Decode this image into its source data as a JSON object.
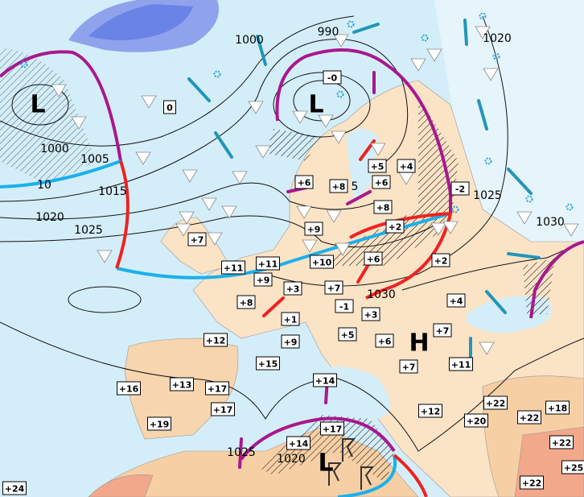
{
  "map": {
    "colors": {
      "sea": "#d4eef9",
      "land": "#fbe3c6",
      "land_warm": "#f7cfa4",
      "land_hot": "#f2a88a",
      "cold_front": "#1ab0ec",
      "warm_front": "#ee2222",
      "occluded_front": "#a8188e",
      "wind_arrow_cold": "#2196b8",
      "snow": "#2aa2d6"
    },
    "pressure_centers": [
      {
        "type": "L"
      },
      {
        "type": "L"
      },
      {
        "type": "H"
      },
      {
        "type": "L"
      }
    ],
    "isobar_labels": [
      "1000",
      "990",
      "1020",
      "1000",
      "1005",
      "10",
      "1015",
      "1020",
      "1025",
      "5",
      "1025",
      "1030",
      "1030",
      "1025",
      "1020"
    ],
    "temperatures": [
      "0",
      "-0",
      "+6",
      "+8",
      "+5",
      "+4",
      "+6",
      "-2",
      "+8",
      "+2",
      "+9",
      "+7",
      "+11",
      "+11",
      "+10",
      "+6",
      "+2",
      "+9",
      "+3",
      "+7",
      "+8",
      "-1",
      "+1",
      "+3",
      "+4",
      "+5",
      "+9",
      "+6",
      "+7",
      "+12",
      "+7",
      "+11",
      "+15",
      "+14",
      "+16",
      "+13",
      "+17",
      "+17",
      "+12",
      "+22",
      "+20",
      "+22",
      "+18",
      "+19",
      "+17",
      "+14",
      "+22",
      "+25",
      "+24",
      "+22"
    ],
    "icons": [
      "snow-icon",
      "rain-drop-icon",
      "shower-triangle-icon",
      "thunderstorm-icon",
      "wind-arrow-icon",
      "warm-advection-arrow-icon",
      "cold-advection-arrow-icon"
    ]
  }
}
